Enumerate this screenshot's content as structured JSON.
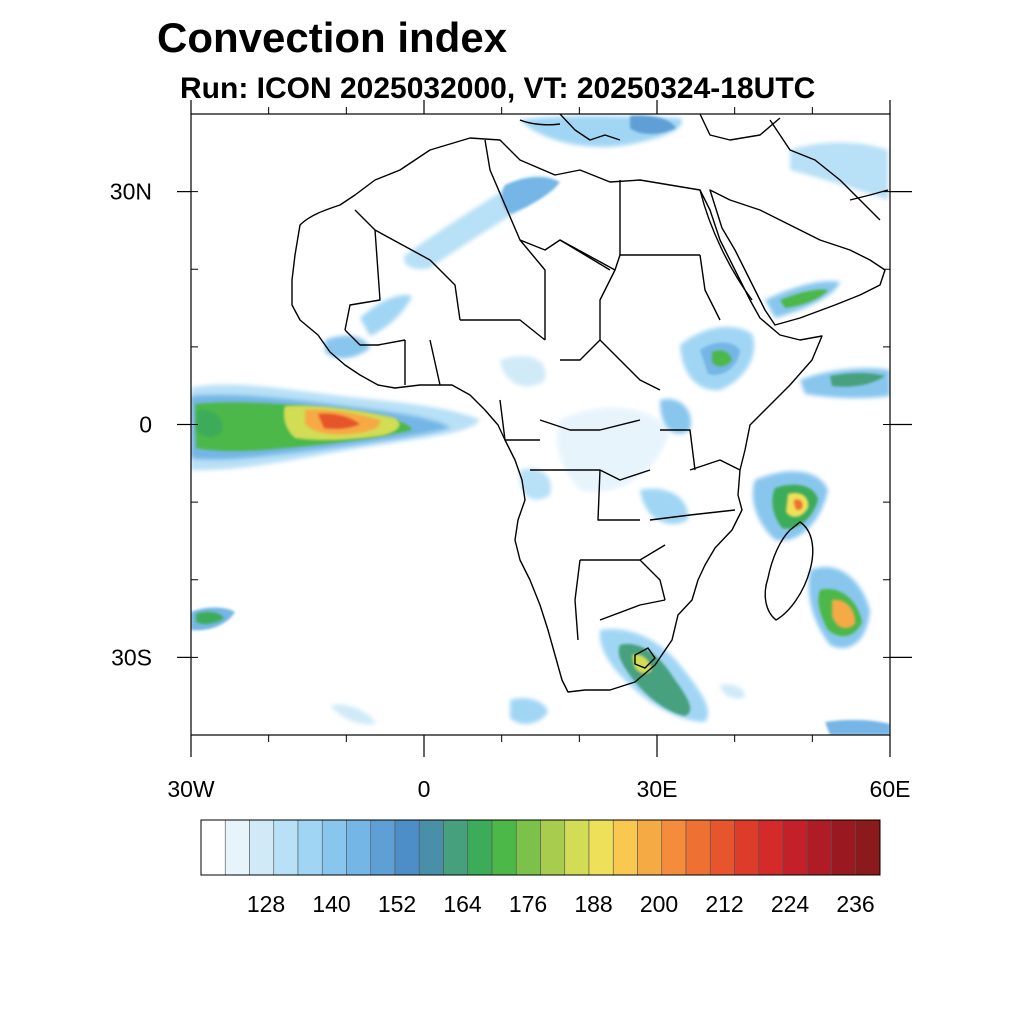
{
  "title": "Convection index",
  "subtitle": "Run: ICON 2025032000,  VT: 20250324-18UTC",
  "map": {
    "lon_range": [
      -30,
      60
    ],
    "lat_range": [
      -40,
      40
    ],
    "lat_ticks": [
      {
        "value": 30,
        "label": "30N"
      },
      {
        "value": 0,
        "label": "0"
      },
      {
        "value": -30,
        "label": "30S"
      }
    ],
    "lon_ticks": [
      {
        "value": -30,
        "label": "30W"
      },
      {
        "value": 0,
        "label": "0"
      },
      {
        "value": 30,
        "label": "30E"
      },
      {
        "value": 60,
        "label": "60E"
      }
    ]
  },
  "colorbar": {
    "labels": [
      "128",
      "140",
      "152",
      "164",
      "176",
      "188",
      "200",
      "212",
      "224",
      "236"
    ],
    "colors": [
      "#ffffff",
      "#e8f4fc",
      "#d0eaf8",
      "#b8e0f6",
      "#a0d6f4",
      "#88c6ee",
      "#74b6e6",
      "#5e9fd6",
      "#4d8ec8",
      "#4a8fa8",
      "#46a07e",
      "#3cac5a",
      "#4cb848",
      "#7cc24a",
      "#a8cc4e",
      "#d2dc54",
      "#efe05a",
      "#f8c850",
      "#f6aa44",
      "#f48c3c",
      "#ee7032",
      "#e6552c",
      "#de3c2a",
      "#d42a2a",
      "#c4202a",
      "#b01c26",
      "#9a1820",
      "#8a1a1c"
    ],
    "accent_bins": {
      "low": "#9fd0f2",
      "mid": "#4bb14d",
      "high": "#f2a63c",
      "peak": "#e23a2b"
    }
  }
}
